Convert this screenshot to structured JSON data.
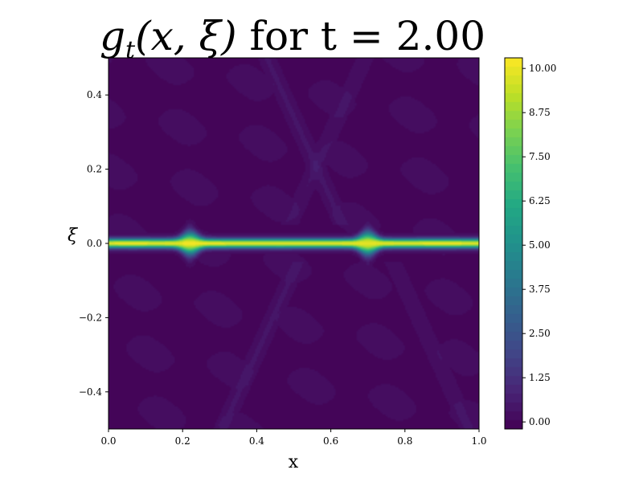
{
  "chart_data": {
    "type": "heatmap",
    "title": {
      "func": "g",
      "sub": "t",
      "args": "(x, ξ)",
      "rest": " for t = 2.00"
    },
    "xlabel": "x",
    "ylabel": "ξ",
    "xlim": [
      0.0,
      1.0
    ],
    "ylim": [
      -0.5,
      0.5
    ],
    "x_ticks": [
      "0.0",
      "0.2",
      "0.4",
      "0.6",
      "0.8",
      "1.0"
    ],
    "y_ticks": [
      "−0.4",
      "−0.2",
      "0.0",
      "0.2",
      "0.4"
    ],
    "x_tick_values": [
      0.0,
      0.2,
      0.4,
      0.6,
      0.8,
      1.0
    ],
    "y_tick_values": [
      -0.4,
      -0.2,
      0.0,
      0.2,
      0.4
    ],
    "colormap": "viridis",
    "color_range": [
      -0.2,
      10.3
    ],
    "colorbar_ticks": [
      "0.00",
      "1.25",
      "2.50",
      "3.75",
      "5.00",
      "6.25",
      "7.50",
      "8.75",
      "10.00"
    ],
    "colorbar_tick_values": [
      0.0,
      1.25,
      2.5,
      3.75,
      5.0,
      6.25,
      7.5,
      8.75,
      10.0
    ],
    "colorbar_levels": 42,
    "features": {
      "ridge_center_xi": 0.0,
      "ridge_peak_value": 10.0,
      "peaks_x": [
        0.22,
        0.7
      ],
      "background_value": 0.0
    }
  }
}
